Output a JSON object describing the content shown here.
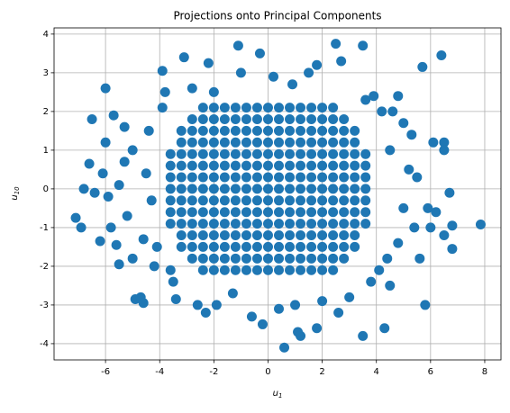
{
  "chart_data": {
    "type": "scatter",
    "title": "Projections onto Principal Components",
    "x_label": {
      "base": "u",
      "sub": "1"
    },
    "y_label": {
      "base": "u",
      "sub": "10"
    },
    "color": "#1f77b4",
    "grid": true,
    "xlim": [
      -7.9,
      8.6
    ],
    "xticks": [
      -6,
      -4,
      -2,
      0,
      2,
      4,
      6,
      8
    ],
    "ylim": [
      -4.42,
      4.16
    ],
    "yticks": [
      -4,
      -3,
      -2,
      -1,
      0,
      1,
      2,
      3,
      4
    ],
    "x": [
      -2.8,
      -2.4,
      -2,
      -1.6,
      -1.2,
      -0.8,
      -0.4,
      0,
      0.4,
      0.8,
      1.2,
      1.6,
      2,
      2.4,
      2.8,
      -3.2,
      -2.8,
      -2.4,
      -2,
      -1.6,
      -1.2,
      -0.8,
      -0.4,
      0,
      0.4,
      0.8,
      1.2,
      1.6,
      2,
      2.4,
      2.8,
      3.2,
      -3.2,
      -2.8,
      -2.4,
      -2,
      -1.6,
      -1.2,
      -0.8,
      -0.4,
      0,
      0.4,
      0.8,
      1.2,
      1.6,
      2,
      2.4,
      2.8,
      3.2,
      -3.6,
      -3.2,
      -2.8,
      -2.4,
      -2,
      -1.6,
      -1.2,
      -0.8,
      -0.4,
      0,
      0.4,
      0.8,
      1.2,
      1.6,
      2,
      2.4,
      2.8,
      3.2,
      3.6,
      -3.6,
      -3.2,
      -2.8,
      -2.4,
      -2,
      -1.6,
      -1.2,
      -0.8,
      -0.4,
      0,
      0.4,
      0.8,
      1.2,
      1.6,
      2,
      2.4,
      2.8,
      3.2,
      3.6,
      -3.6,
      -3.2,
      -2.8,
      -2.4,
      -2,
      -1.6,
      -1.2,
      -0.8,
      -0.4,
      0,
      0.4,
      0.8,
      1.2,
      1.6,
      2,
      2.4,
      2.8,
      3.2,
      3.6,
      -3.6,
      -3.2,
      -2.8,
      -2.4,
      -2,
      -1.6,
      -1.2,
      -0.8,
      -0.4,
      0,
      0.4,
      0.8,
      1.2,
      1.6,
      2,
      2.4,
      2.8,
      3.2,
      3.6,
      -3.6,
      -3.2,
      -2.8,
      -2.4,
      -2,
      -1.6,
      -1.2,
      -0.8,
      -0.4,
      0,
      0.4,
      0.8,
      1.2,
      1.6,
      2,
      2.4,
      2.8,
      3.2,
      3.6,
      -3.6,
      -3.2,
      -2.8,
      -2.4,
      -2,
      -1.6,
      -1.2,
      -0.8,
      -0.4,
      0,
      0.4,
      0.8,
      1.2,
      1.6,
      2,
      2.4,
      2.8,
      3.2,
      3.6,
      -3.6,
      -3.2,
      -2.8,
      -2.4,
      -2,
      -1.6,
      -1.2,
      -0.8,
      -0.4,
      0,
      0.4,
      0.8,
      1.2,
      1.6,
      2,
      2.4,
      2.8,
      3.2,
      3.6,
      -3.2,
      -2.8,
      -2.4,
      -2,
      -1.6,
      -1.2,
      -0.8,
      -0.4,
      0,
      0.4,
      0.8,
      1.2,
      1.6,
      2,
      2.4,
      2.8,
      3.2,
      -3.2,
      -2.8,
      -2.4,
      -2,
      -1.6,
      -1.2,
      -0.8,
      -0.4,
      0,
      0.4,
      0.8,
      1.2,
      1.6,
      2,
      2.4,
      2.8,
      3.2,
      -2.8,
      -2.4,
      -2,
      -1.6,
      -1.2,
      -0.8,
      -0.4,
      0,
      0.4,
      0.8,
      1.2,
      1.6,
      2,
      2.4,
      2.8,
      -2.4,
      -2,
      -1.6,
      -1.2,
      -0.8,
      -0.4,
      0,
      0.4,
      0.8,
      1.2,
      1.6,
      2,
      2.4,
      -2.4,
      -2,
      -1.6,
      -1.2,
      -0.8,
      -0.4,
      0,
      0.4,
      0.8,
      1.2,
      1.6,
      2,
      2.4,
      -7.1,
      -6.9,
      -6.8,
      -6.6,
      -6.5,
      -6.4,
      -6.2,
      -6.1,
      -6,
      -6,
      -5.9,
      -5.8,
      -5.7,
      -5.6,
      -5.5,
      -5.5,
      -5.3,
      -5.2,
      -5,
      -5,
      -4.9,
      -4.7,
      -4.6,
      -4.5,
      -4.6,
      -4.3,
      -4.2,
      -4.1,
      -3.9,
      -3.9,
      -3.5,
      -3.4,
      -3.1,
      -2.8,
      -2.6,
      -2.3,
      -2.2,
      -2,
      -1.9,
      -1.3,
      -1.1,
      -1,
      -0.6,
      -0.3,
      -0.2,
      0.2,
      0.4,
      0.6,
      0.9,
      1,
      1.1,
      1.2,
      1.5,
      1.8,
      1.8,
      2,
      2.5,
      2.7,
      2.6,
      3,
      3.5,
      3.5,
      3.6,
      3.8,
      4.2,
      4.3,
      4.4,
      4.5,
      4.6,
      4.5,
      4.8,
      5,
      5.2,
      5.3,
      5.4,
      5.5,
      5.6,
      5.7,
      5.8,
      5.9,
      6,
      6.1,
      6.2,
      6.4,
      6.5,
      6.5,
      6.7,
      6.8,
      6.8,
      7.85,
      6.5,
      5,
      -5.3,
      -4.4,
      4.8,
      -3.8,
      3.9,
      -3.6,
      4.1
    ],
    "y": [
      1.8,
      1.8,
      1.8,
      1.8,
      1.8,
      1.8,
      1.8,
      1.8,
      1.8,
      1.8,
      1.8,
      1.8,
      1.8,
      1.8,
      1.8,
      1.5,
      1.5,
      1.5,
      1.5,
      1.5,
      1.5,
      1.5,
      1.5,
      1.5,
      1.5,
      1.5,
      1.5,
      1.5,
      1.5,
      1.5,
      1.5,
      1.5,
      1.2,
      1.2,
      1.2,
      1.2,
      1.2,
      1.2,
      1.2,
      1.2,
      1.2,
      1.2,
      1.2,
      1.2,
      1.2,
      1.2,
      1.2,
      1.2,
      1.2,
      0.9,
      0.9,
      0.9,
      0.9,
      0.9,
      0.9,
      0.9,
      0.9,
      0.9,
      0.9,
      0.9,
      0.9,
      0.9,
      0.9,
      0.9,
      0.9,
      0.9,
      0.9,
      0.9,
      0.6,
      0.6,
      0.6,
      0.6,
      0.6,
      0.6,
      0.6,
      0.6,
      0.6,
      0.6,
      0.6,
      0.6,
      0.6,
      0.6,
      0.6,
      0.6,
      0.6,
      0.6,
      0.6,
      0.3,
      0.3,
      0.3,
      0.3,
      0.3,
      0.3,
      0.3,
      0.3,
      0.3,
      0.3,
      0.3,
      0.3,
      0.3,
      0.3,
      0.3,
      0.3,
      0.3,
      0.3,
      0.3,
      0,
      0,
      0,
      0,
      0,
      0,
      0,
      0,
      0,
      0,
      0,
      0,
      0,
      0,
      0,
      0,
      0,
      0,
      0,
      -0.3,
      -0.3,
      -0.3,
      -0.3,
      -0.3,
      -0.3,
      -0.3,
      -0.3,
      -0.3,
      -0.3,
      -0.3,
      -0.3,
      -0.3,
      -0.3,
      -0.3,
      -0.3,
      -0.3,
      -0.3,
      -0.3,
      -0.6,
      -0.6,
      -0.6,
      -0.6,
      -0.6,
      -0.6,
      -0.6,
      -0.6,
      -0.6,
      -0.6,
      -0.6,
      -0.6,
      -0.6,
      -0.6,
      -0.6,
      -0.6,
      -0.6,
      -0.6,
      -0.6,
      -0.9,
      -0.9,
      -0.9,
      -0.9,
      -0.9,
      -0.9,
      -0.9,
      -0.9,
      -0.9,
      -0.9,
      -0.9,
      -0.9,
      -0.9,
      -0.9,
      -0.9,
      -0.9,
      -0.9,
      -0.9,
      -0.9,
      -1.2,
      -1.2,
      -1.2,
      -1.2,
      -1.2,
      -1.2,
      -1.2,
      -1.2,
      -1.2,
      -1.2,
      -1.2,
      -1.2,
      -1.2,
      -1.2,
      -1.2,
      -1.2,
      -1.2,
      -1.5,
      -1.5,
      -1.5,
      -1.5,
      -1.5,
      -1.5,
      -1.5,
      -1.5,
      -1.5,
      -1.5,
      -1.5,
      -1.5,
      -1.5,
      -1.5,
      -1.5,
      -1.5,
      -1.5,
      -1.8,
      -1.8,
      -1.8,
      -1.8,
      -1.8,
      -1.8,
      -1.8,
      -1.8,
      -1.8,
      -1.8,
      -1.8,
      -1.8,
      -1.8,
      -1.8,
      -1.8,
      2.1,
      2.1,
      2.1,
      2.1,
      2.1,
      2.1,
      2.1,
      2.1,
      2.1,
      2.1,
      2.1,
      2.1,
      2.1,
      -2.1,
      -2.1,
      -2.1,
      -2.1,
      -2.1,
      -2.1,
      -2.1,
      -2.1,
      -2.1,
      -2.1,
      -2.1,
      -2.1,
      -2.1,
      -0.75,
      -1,
      0,
      0.65,
      1.8,
      -0.1,
      -1.35,
      0.4,
      2.6,
      1.2,
      -0.2,
      -1,
      1.9,
      -1.45,
      0.1,
      -1.95,
      1.6,
      -0.7,
      -1.8,
      1,
      -2.85,
      -2.8,
      -2.95,
      0.4,
      -1.3,
      -0.3,
      -2,
      -1.5,
      3.05,
      2.1,
      -2.4,
      -2.85,
      3.4,
      2.6,
      -3,
      -3.2,
      3.25,
      2.5,
      -3,
      -2.7,
      3.7,
      3,
      -3.3,
      3.5,
      -3.5,
      2.9,
      -3.1,
      -4.1,
      2.7,
      -3,
      -3.7,
      -3.8,
      3,
      3.2,
      -3.6,
      -2.9,
      3.75,
      3.3,
      -3.2,
      -2.8,
      3.7,
      -3.8,
      2.3,
      -2.4,
      2,
      -3.6,
      -1.8,
      -2.5,
      2,
      1,
      2.4,
      -0.5,
      0.5,
      1.4,
      -1,
      0.3,
      -1.8,
      3.15,
      -3,
      -0.5,
      -1,
      1.2,
      -0.6,
      3.45,
      1.2,
      -1.2,
      -0.1,
      -1.55,
      -0.95,
      -0.92,
      1,
      1.7,
      0.7,
      1.5,
      -1.4,
      2.5,
      2.4,
      -2.1,
      -2.1
    ]
  }
}
